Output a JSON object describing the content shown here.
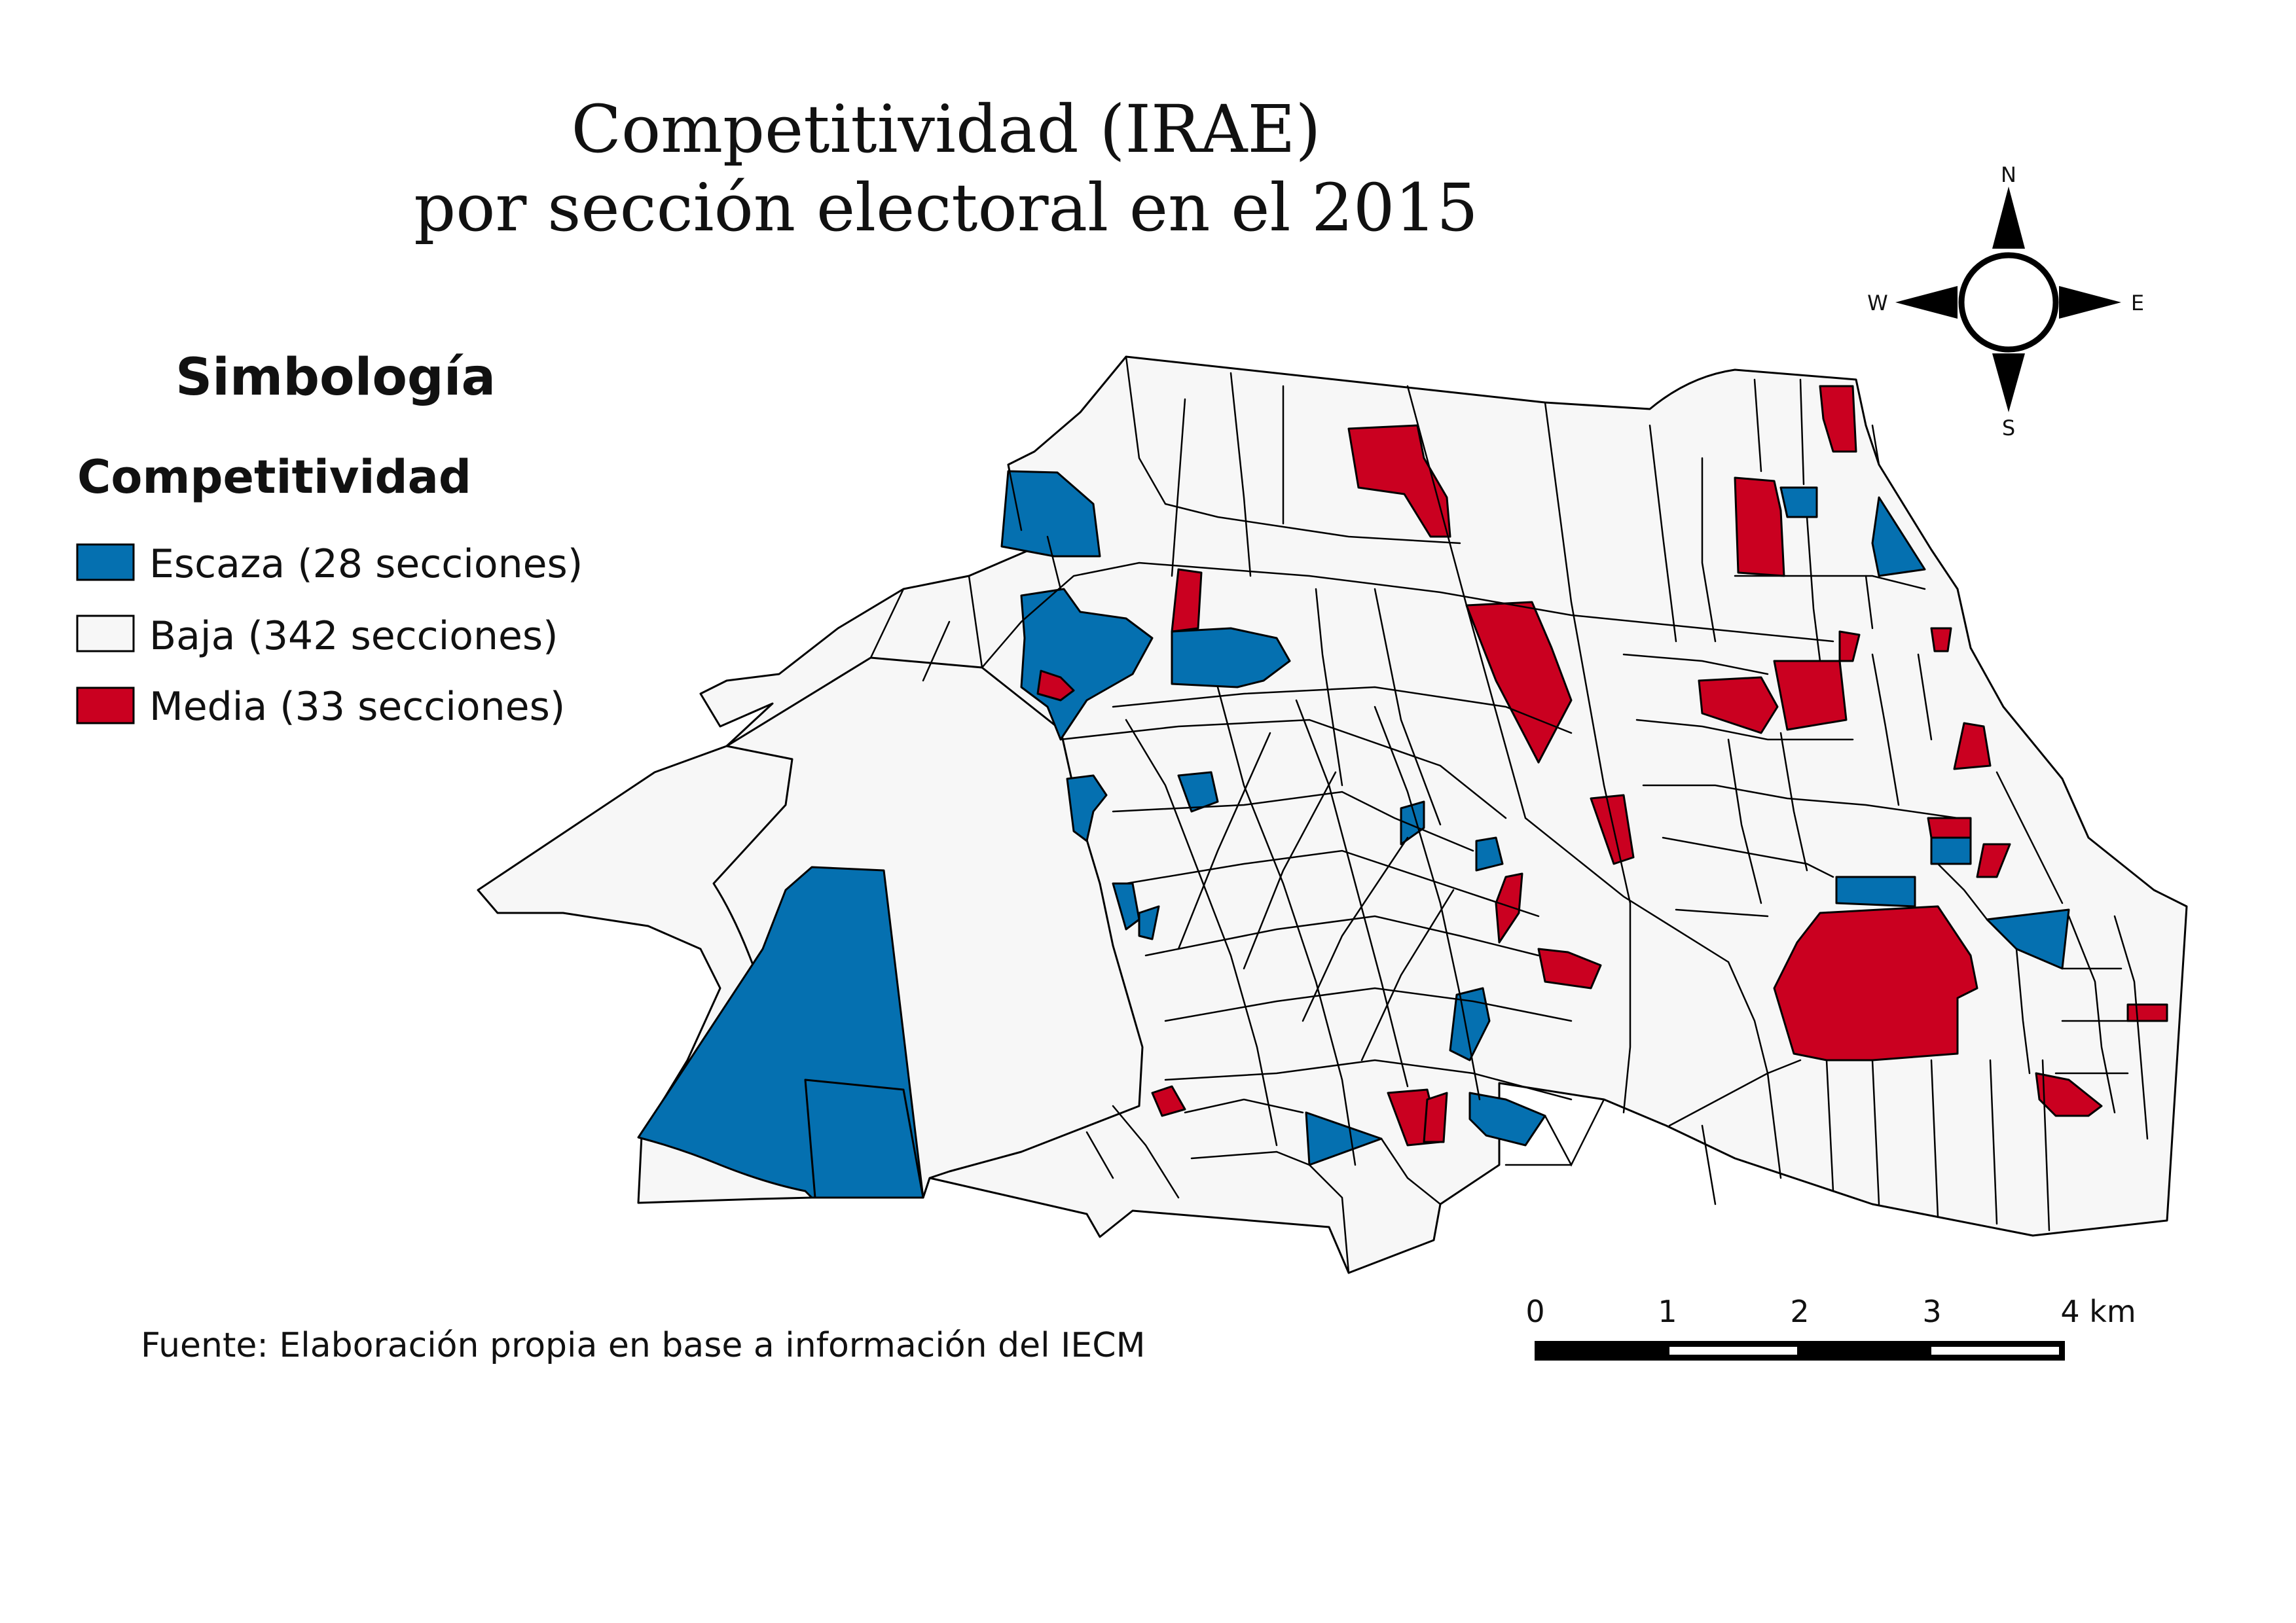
{
  "map": {
    "title_line1": "Competitividad (IRAE)",
    "title_line2": "por sección electoral en el 2015",
    "source": "Fuente: Elaboración propia en base a información del IECM"
  },
  "legend": {
    "title": "Simbología",
    "subtitle": "Competitividad",
    "items": [
      {
        "label": "Escaza (28 secciones)",
        "color": "#0570b0",
        "count": 28
      },
      {
        "label": "Baja (342 secciones)",
        "color": "#f7f7f7",
        "count": 342
      },
      {
        "label": "Media (33 secciones)",
        "color": "#ca0020",
        "count": 33
      }
    ]
  },
  "compass": {
    "north": "N",
    "south": "S",
    "east": "E",
    "west": "W"
  },
  "scale_bar": {
    "labels": [
      "0",
      "1",
      "2",
      "3",
      "4 km"
    ]
  }
}
